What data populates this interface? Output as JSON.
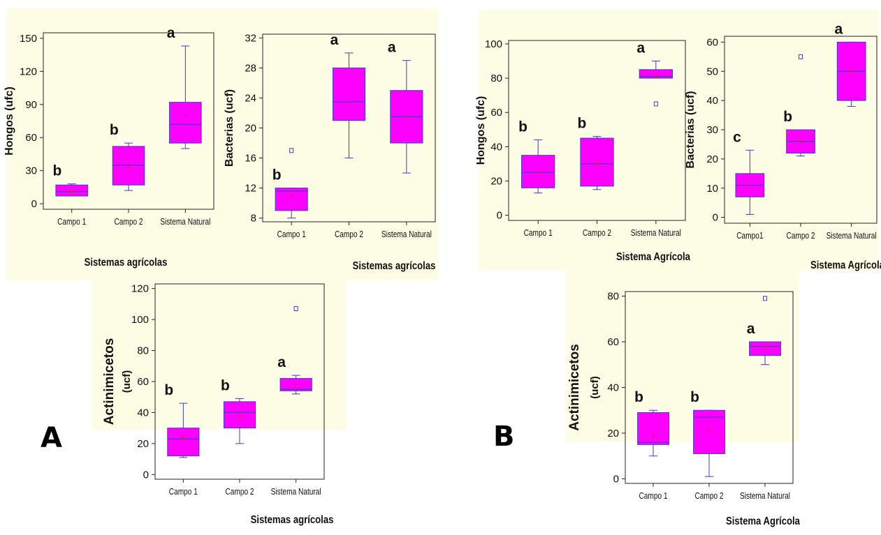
{
  "panels": {
    "A": "A",
    "B": "B"
  },
  "chart_data": [
    {
      "type": "box",
      "panel": "A",
      "ylabel": "Hongos (ufc)",
      "xlabel": "Sistemas agrícolas",
      "ylim": [
        -5,
        155
      ],
      "yticks": [
        0,
        30,
        60,
        90,
        120,
        150
      ],
      "categories": [
        "Campo 1",
        "Campo 2",
        "Sistema Natural"
      ],
      "boxes": [
        {
          "min": 7,
          "q1": 7,
          "median": 11,
          "q3": 17,
          "max": 18,
          "mean": 11,
          "outliers": []
        },
        {
          "min": 12,
          "q1": 17,
          "median": 35,
          "q3": 52,
          "max": 55,
          "mean": 33,
          "outliers": []
        },
        {
          "min": 50,
          "q1": 55,
          "median": 72,
          "q3": 92,
          "max": 143,
          "mean": 80,
          "outliers": []
        }
      ],
      "letters": [
        "b",
        "b",
        "a"
      ]
    },
    {
      "type": "box",
      "panel": "A",
      "ylabel": "Bacterias (ucf)",
      "xlabel": "Sistemas agrícolas",
      "ylim": [
        7.5,
        32.5
      ],
      "yticks": [
        8,
        12,
        16,
        20,
        24,
        28,
        32
      ],
      "categories": [
        "Campo 1",
        "Campo 2",
        "Sistema Natural"
      ],
      "boxes": [
        {
          "min": 8,
          "q1": 9,
          "median": 11.6,
          "q3": 12,
          "max": 12,
          "mean": 11,
          "outliers": [
            17
          ]
        },
        {
          "min": 16,
          "q1": 21,
          "median": 23.5,
          "q3": 28,
          "max": 30,
          "mean": 23.5,
          "outliers": []
        },
        {
          "min": 14,
          "q1": 18,
          "median": 21.5,
          "q3": 25,
          "max": 29,
          "mean": 21.5,
          "outliers": []
        }
      ],
      "letters": [
        "b",
        "a",
        "a"
      ]
    },
    {
      "type": "box",
      "panel": "A",
      "ylabel": "Actinimicetos (ucf)",
      "xlabel": "Sistemas agrícolas",
      "ylim": [
        -3,
        123
      ],
      "yticks": [
        0,
        20,
        40,
        60,
        80,
        100,
        120
      ],
      "categories": [
        "Campo 1",
        "Campo 2",
        "Sistema Natural"
      ],
      "boxes": [
        {
          "min": 11,
          "q1": 12,
          "median": 23,
          "q3": 30,
          "max": 46,
          "mean": 24,
          "outliers": []
        },
        {
          "min": 20,
          "q1": 30,
          "median": 40,
          "q3": 47,
          "max": 49,
          "mean": 38,
          "outliers": []
        },
        {
          "min": 52,
          "q1": 54,
          "median": 55,
          "q3": 62,
          "max": 64,
          "mean": 58,
          "outliers": [
            107
          ]
        }
      ],
      "letters": [
        "b",
        "b",
        "a"
      ]
    },
    {
      "type": "box",
      "panel": "B",
      "ylabel": "Hongos (ufc)",
      "xlabel": "Sistema Agrícola",
      "ylim": [
        -3,
        102
      ],
      "yticks": [
        0,
        20,
        40,
        60,
        80,
        100
      ],
      "categories": [
        "Campo 1",
        "Campo 2",
        "Sistema Natural"
      ],
      "boxes": [
        {
          "min": 13,
          "q1": 16,
          "median": 25,
          "q3": 35,
          "max": 44,
          "mean": 25,
          "outliers": []
        },
        {
          "min": 15,
          "q1": 17,
          "median": 30,
          "q3": 45,
          "max": 46,
          "mean": 30,
          "outliers": []
        },
        {
          "min": 80,
          "q1": 80,
          "median": 81,
          "q3": 85,
          "max": 90,
          "mean": 81,
          "outliers": [
            65
          ]
        }
      ],
      "letters": [
        "b",
        "b",
        "a"
      ]
    },
    {
      "type": "box",
      "panel": "B",
      "ylabel": "Bacterias (ucf)",
      "xlabel": "Sistema Agrícola",
      "ylim": [
        -2,
        62
      ],
      "yticks": [
        0,
        10,
        20,
        30,
        40,
        50,
        60
      ],
      "categories": [
        "Campo1",
        "Campo 2",
        "Sistema Natural"
      ],
      "boxes": [
        {
          "min": 1,
          "q1": 7,
          "median": 11,
          "q3": 15,
          "max": 23,
          "mean": 11,
          "outliers": []
        },
        {
          "min": 21,
          "q1": 22,
          "median": 26,
          "q3": 30,
          "max": 30,
          "mean": 26,
          "outliers": [
            55
          ]
        },
        {
          "min": 38,
          "q1": 40,
          "median": 50,
          "q3": 60,
          "max": 60,
          "mean": 50,
          "outliers": []
        }
      ],
      "letters": [
        "c",
        "b",
        "a"
      ]
    },
    {
      "type": "box",
      "panel": "B",
      "ylabel": "Actinimicetos (ucf)",
      "xlabel": "Sistema Agrícola",
      "ylim": [
        -2,
        82
      ],
      "yticks": [
        0,
        20,
        40,
        60,
        80
      ],
      "categories": [
        "Campo 1",
        "Campo 2",
        "Sistema Natural"
      ],
      "boxes": [
        {
          "min": 10,
          "q1": 15,
          "median": 16,
          "q3": 29,
          "max": 30,
          "mean": 19,
          "outliers": []
        },
        {
          "min": 1,
          "q1": 11,
          "median": 27,
          "q3": 30,
          "max": 30,
          "mean": 21,
          "outliers": []
        },
        {
          "min": 50,
          "q1": 54,
          "median": 58,
          "q3": 60,
          "max": 60,
          "mean": 58,
          "outliers": [
            79
          ]
        }
      ],
      "letters": [
        "b",
        "b",
        "a"
      ]
    }
  ]
}
